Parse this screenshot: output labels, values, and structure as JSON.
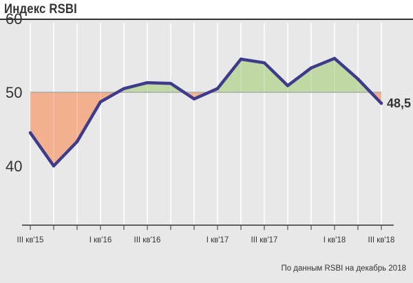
{
  "header": {
    "title": "Индекс RSBI"
  },
  "footer": {
    "source": "По данным RSBI на декабрь 2018"
  },
  "colors": {
    "line": "#3e3b8c",
    "above": "#bfd8a4",
    "below": "#f2b08f",
    "grid": "#ffffff",
    "reference": "#aaaaaa",
    "text": "#333333"
  },
  "chart_data": {
    "type": "line",
    "title": "Индекс RSBI",
    "xlabel": "",
    "ylabel": "",
    "ylim": [
      30,
      62
    ],
    "reference_value": 50,
    "grid": "vertical",
    "y_ticks": [
      {
        "value": 40,
        "label": "40"
      },
      {
        "value": 50,
        "label": "50"
      },
      {
        "value": 60,
        "label": "60"
      }
    ],
    "categories": [
      "III кв'15",
      "",
      "",
      "I кв'16",
      "",
      "III кв'16",
      "",
      "",
      "I кв'17",
      "",
      "III кв'17",
      "",
      "",
      "I кв'18",
      "",
      "III кв'18"
    ],
    "series": [
      {
        "name": "",
        "values": [
          44.5,
          40.0,
          43.3,
          48.7,
          50.5,
          51.3,
          51.2,
          49.1,
          50.5,
          54.5,
          54.0,
          50.9,
          53.3,
          54.6,
          51.8,
          48.5
        ]
      }
    ],
    "last_value_label": "48,5"
  }
}
